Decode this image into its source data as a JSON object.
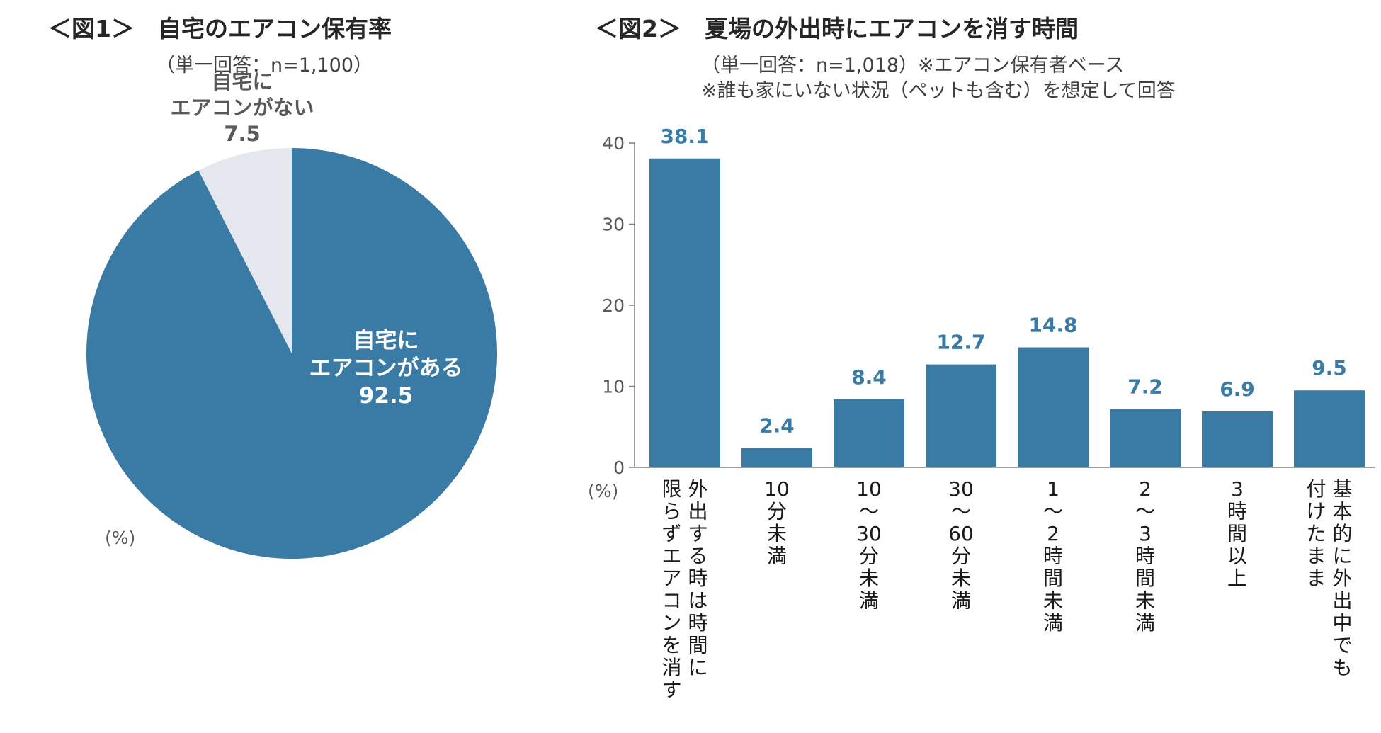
{
  "fig1": {
    "title": "＜図1＞　自宅のエアコン保有率",
    "subtitle": "（単一回答：n=1,100）",
    "unit": "(%)"
  },
  "fig2": {
    "title": "＜図2＞　夏場の外出時にエアコンを消す時間",
    "subtitle1": "（単一回答：n=1,018）※エアコン保有者ベース",
    "subtitle2": "※誰も家にいない状況（ペットも含む）を想定して回答",
    "unit": "(%)"
  },
  "colors": {
    "primary": "#3a7ba6",
    "secondary": "#e4e8ee",
    "value_label": "#3a7ba6"
  },
  "chart_data": [
    {
      "type": "pie",
      "title": "自宅のエアコン保有率",
      "slices": [
        {
          "label_lines": [
            "自宅に",
            "エアコンがある"
          ],
          "value": 92.5,
          "value_text": "92.5"
        },
        {
          "label_lines": [
            "自宅に",
            "エアコンがない"
          ],
          "value": 7.5,
          "value_text": "7.5"
        }
      ]
    },
    {
      "type": "bar",
      "title": "夏場の外出時にエアコンを消す時間",
      "ylim": [
        0,
        40
      ],
      "yticks": [
        "0",
        "10",
        "20",
        "30",
        "40"
      ],
      "categories": [
        [
          "外出する時は時間に",
          "限らずエアコンを消す"
        ],
        [
          "10",
          "分未満"
        ],
        [
          "10",
          "～",
          "30",
          "分未満"
        ],
        [
          "30",
          "～",
          "60",
          "分未満"
        ],
        [
          "1",
          "～",
          "2",
          "時間未満"
        ],
        [
          "2",
          "～",
          "3",
          "時間未満"
        ],
        [
          "3",
          "時間以上"
        ],
        [
          "基本的に外出中でも",
          "付けたまま"
        ]
      ],
      "values": [
        38.1,
        2.4,
        8.4,
        12.7,
        14.8,
        7.2,
        6.9,
        9.5
      ],
      "value_labels": [
        "38.1",
        "2.4",
        "8.4",
        "12.7",
        "14.8",
        "7.2",
        "6.9",
        "9.5"
      ]
    }
  ]
}
